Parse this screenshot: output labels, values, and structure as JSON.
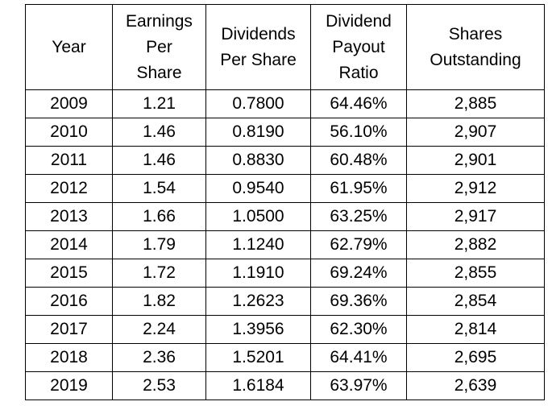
{
  "table": {
    "header": [
      [
        "Year"
      ],
      [
        "Earnings",
        "Per",
        "Share"
      ],
      [
        "Dividends",
        "Per Share"
      ],
      [
        "Dividend",
        "Payout",
        "Ratio"
      ],
      [
        "Shares",
        "Outstanding"
      ]
    ],
    "rows": [
      [
        "2009",
        "1.21",
        "0.7800",
        "64.46%",
        "2,885"
      ],
      [
        "2010",
        "1.46",
        "0.8190",
        "56.10%",
        "2,907"
      ],
      [
        "2011",
        "1.46",
        "0.8830",
        "60.48%",
        "2,901"
      ],
      [
        "2012",
        "1.54",
        "0.9540",
        "61.95%",
        "2,912"
      ],
      [
        "2013",
        "1.66",
        "1.0500",
        "63.25%",
        "2,917"
      ],
      [
        "2014",
        "1.79",
        "1.1240",
        "62.79%",
        "2,882"
      ],
      [
        "2015",
        "1.72",
        "1.1910",
        "69.24%",
        "2,855"
      ],
      [
        "2016",
        "1.82",
        "1.2623",
        "69.36%",
        "2,854"
      ],
      [
        "2017",
        "2.24",
        "1.3956",
        "62.30%",
        "2,814"
      ],
      [
        "2018",
        "2.36",
        "1.5201",
        "64.41%",
        "2,695"
      ],
      [
        "2019",
        "2.53",
        "1.6184",
        "63.97%",
        "2,639"
      ]
    ]
  }
}
